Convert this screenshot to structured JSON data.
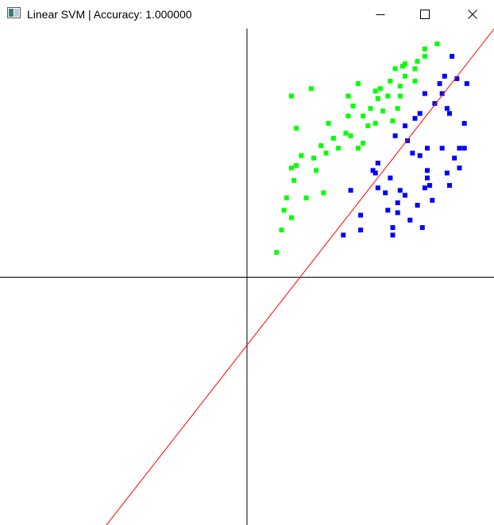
{
  "window": {
    "title": "Linear SVM | Accuracy: 1.000000",
    "icon": "app-window-icon",
    "controls": [
      "minimize-icon",
      "maximize-icon",
      "close-icon"
    ]
  },
  "colors": {
    "class_a": "#00ff00",
    "class_b": "#0000ff",
    "decision_boundary": "#ff0000",
    "axes": "#000000",
    "background": "#ffffff"
  },
  "chart_data": {
    "type": "scatter",
    "grid": false,
    "series": [
      {
        "color": "#00ff00",
        "points": [
          [
            0.72,
            0.92
          ],
          [
            0.63,
            0.85
          ],
          [
            0.54,
            0.76
          ],
          [
            0.45,
            0.78
          ],
          [
            0.72,
            0.89
          ],
          [
            0.69,
            0.87
          ],
          [
            0.6,
            0.84
          ],
          [
            0.64,
            0.81
          ],
          [
            0.57,
            0.73
          ],
          [
            0.68,
            0.79
          ],
          [
            0.41,
            0.73
          ],
          [
            0.62,
            0.73
          ],
          [
            0.47,
            0.65
          ],
          [
            0.61,
            0.68
          ],
          [
            0.59,
            0.63
          ],
          [
            0.49,
            0.61
          ],
          [
            0.33,
            0.62
          ],
          [
            0.26,
            0.76
          ],
          [
            0.18,
            0.73
          ],
          [
            0.2,
            0.6
          ],
          [
            0.3,
            0.53
          ],
          [
            0.45,
            0.52
          ],
          [
            0.42,
            0.57
          ],
          [
            0.27,
            0.48
          ],
          [
            0.22,
            0.49
          ],
          [
            0.2,
            0.45
          ],
          [
            0.18,
            0.44
          ],
          [
            0.19,
            0.39
          ],
          [
            0.28,
            0.43
          ],
          [
            0.31,
            0.34
          ],
          [
            0.16,
            0.32
          ],
          [
            0.24,
            0.32
          ],
          [
            0.15,
            0.27
          ],
          [
            0.18,
            0.24
          ],
          [
            0.14,
            0.19
          ],
          [
            0.12,
            0.1
          ],
          [
            0.41,
            0.65
          ],
          [
            0.53,
            0.72
          ],
          [
            0.58,
            0.79
          ],
          [
            0.5,
            0.68
          ],
          [
            0.35,
            0.56
          ],
          [
            0.55,
            0.67
          ],
          [
            0.43,
            0.69
          ],
          [
            0.52,
            0.75
          ],
          [
            0.64,
            0.86
          ],
          [
            0.32,
            0.5
          ],
          [
            0.37,
            0.52
          ],
          [
            0.47,
            0.54
          ],
          [
            0.68,
            0.84
          ],
          [
            0.62,
            0.77
          ],
          [
            0.4,
            0.58
          ],
          [
            0.52,
            0.62
          ],
          [
            0.77,
            0.94
          ]
        ]
      },
      {
        "color": "#0000ff",
        "points": [
          [
            0.83,
            0.89
          ],
          [
            0.8,
            0.81
          ],
          [
            0.78,
            0.78
          ],
          [
            0.85,
            0.8
          ],
          [
            0.89,
            0.78
          ],
          [
            0.72,
            0.74
          ],
          [
            0.79,
            0.74
          ],
          [
            0.76,
            0.7
          ],
          [
            0.81,
            0.68
          ],
          [
            0.82,
            0.66
          ],
          [
            0.88,
            0.62
          ],
          [
            0.64,
            0.61
          ],
          [
            0.7,
            0.66
          ],
          [
            0.68,
            0.64
          ],
          [
            0.6,
            0.57
          ],
          [
            0.65,
            0.55
          ],
          [
            0.73,
            0.52
          ],
          [
            0.79,
            0.52
          ],
          [
            0.86,
            0.52
          ],
          [
            0.84,
            0.48
          ],
          [
            0.88,
            0.52
          ],
          [
            0.7,
            0.49
          ],
          [
            0.53,
            0.46
          ],
          [
            0.51,
            0.43
          ],
          [
            0.56,
            0.34
          ],
          [
            0.58,
            0.4
          ],
          [
            0.53,
            0.36
          ],
          [
            0.52,
            0.42
          ],
          [
            0.73,
            0.4
          ],
          [
            0.81,
            0.42
          ],
          [
            0.86,
            0.44
          ],
          [
            0.62,
            0.35
          ],
          [
            0.67,
            0.5
          ],
          [
            0.42,
            0.35
          ],
          [
            0.61,
            0.3
          ],
          [
            0.57,
            0.27
          ],
          [
            0.46,
            0.19
          ],
          [
            0.39,
            0.17
          ],
          [
            0.74,
            0.37
          ],
          [
            0.75,
            0.31
          ],
          [
            0.61,
            0.26
          ],
          [
            0.59,
            0.2
          ],
          [
            0.72,
            0.36
          ],
          [
            0.82,
            0.37
          ],
          [
            0.46,
            0.25
          ],
          [
            0.59,
            0.17
          ],
          [
            0.66,
            0.23
          ],
          [
            0.71,
            0.2
          ],
          [
            0.69,
            0.29
          ],
          [
            0.64,
            0.33
          ],
          [
            0.73,
            0.43
          ]
        ]
      }
    ],
    "decision_boundary": [
      [
        -0.57,
        -1.0
      ],
      [
        1.0,
        1.0
      ]
    ],
    "xlim": [
      -1,
      1
    ],
    "ylim": [
      -1,
      1
    ]
  }
}
